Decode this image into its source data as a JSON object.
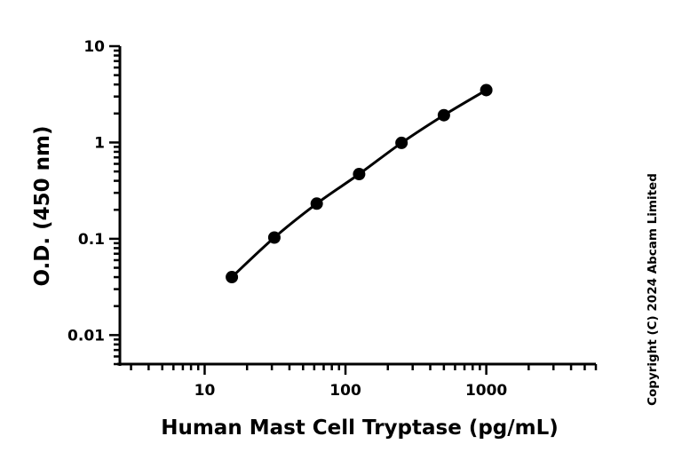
{
  "chart_data": {
    "type": "scatter",
    "xlabel": "Human Mast Cell Tryptase (pg/mL)",
    "ylabel": "O.D. (450 nm)",
    "xscale": "log",
    "yscale": "log",
    "xlim": [
      2.5,
      6000
    ],
    "ylim": [
      0.005,
      10
    ],
    "x_ticks": [
      10,
      100,
      1000
    ],
    "x_tick_labels": [
      "10",
      "100",
      "1000"
    ],
    "y_ticks": [
      0.01,
      0.1,
      1,
      10
    ],
    "y_tick_labels": [
      "0.01",
      "0.1",
      "1",
      "10"
    ],
    "grid": false,
    "series": [
      {
        "x": [
          15.6,
          31.25,
          62.5,
          125,
          250,
          500,
          1000
        ],
        "y": [
          0.04,
          0.103,
          0.232,
          0.47,
          0.99,
          1.92,
          3.5
        ],
        "color": "#000000",
        "fit_curve": true
      }
    ]
  },
  "copyright": "Copyright (C) 2024 Abcam Limited"
}
